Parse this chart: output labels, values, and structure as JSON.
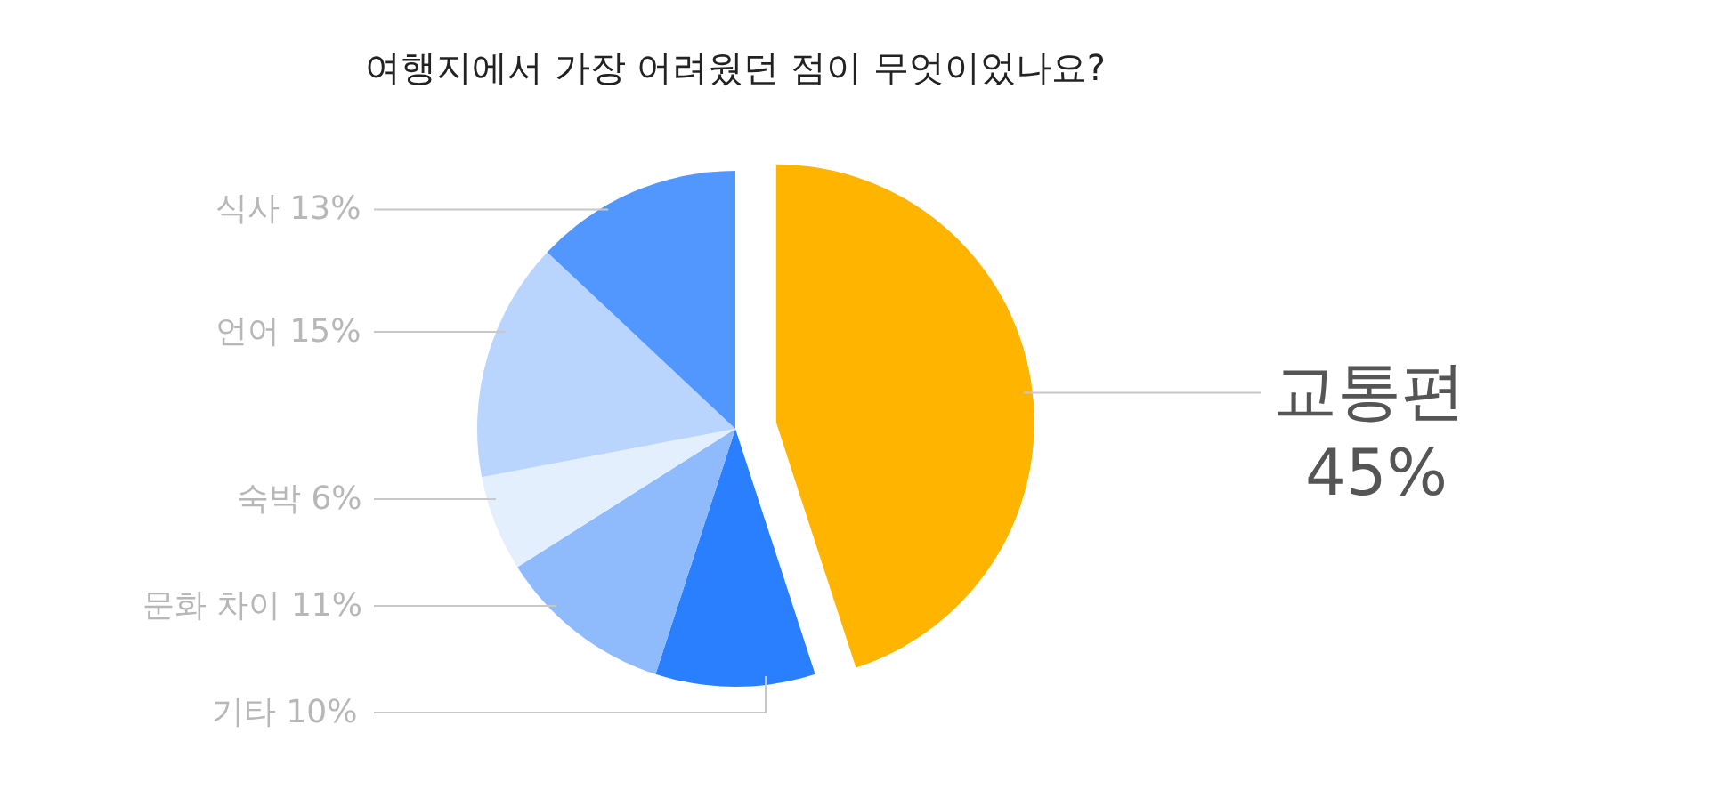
{
  "chart_data": {
    "type": "pie",
    "title": "여행지에서 가장 어려웠던 점이 무엇이었나요?",
    "categories": [
      "교통편",
      "기타",
      "문화 차이",
      "숙박",
      "언어",
      "식사"
    ],
    "values": [
      45,
      10,
      11,
      6,
      15,
      13
    ],
    "colors": [
      "#ffb400",
      "#2a7ffe",
      "#8fbbfd",
      "#e4effe",
      "#b9d5fd",
      "#5297fd"
    ],
    "value_labels": [
      "45%",
      "10%",
      "11%",
      "6%",
      "15%",
      "13%"
    ]
  }
}
